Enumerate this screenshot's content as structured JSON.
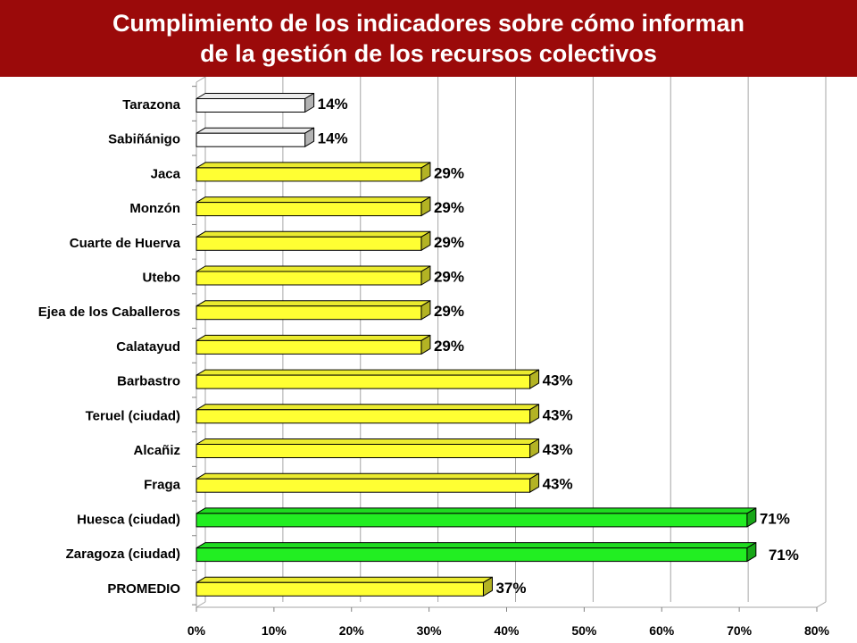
{
  "header": {
    "title_line1": "Cumplimiento de los indicadores sobre cómo informan",
    "title_line2": "de la gestión de los recursos colectivos"
  },
  "chart_data": {
    "type": "bar",
    "orientation": "horizontal",
    "title": "Cumplimiento de los indicadores sobre cómo informan de la gestión de los recursos colectivos",
    "categories": [
      "Tarazona",
      "Sabiñánigo",
      "Jaca",
      "Monzón",
      "Cuarte de Huerva",
      "Utebo",
      "Ejea de los Caballeros",
      "Calatayud",
      "Barbastro",
      "Teruel (ciudad)",
      "Alcañiz",
      "Fraga",
      "Huesca (ciudad)",
      "Zaragoza (ciudad)",
      "PROMEDIO"
    ],
    "values": [
      14,
      14,
      29,
      29,
      29,
      29,
      29,
      29,
      43,
      43,
      43,
      43,
      71,
      71,
      37
    ],
    "value_labels": [
      "14%",
      "14%",
      "29%",
      "29%",
      "29%",
      "29%",
      "29%",
      "29%",
      "43%",
      "43%",
      "43%",
      "43%",
      "71%",
      "71%",
      "37%"
    ],
    "bar_colors": [
      "#ffffff",
      "#ffffff",
      "#ffff33",
      "#ffff33",
      "#ffff33",
      "#ffff33",
      "#ffff33",
      "#ffff33",
      "#ffff33",
      "#ffff33",
      "#ffff33",
      "#ffff33",
      "#22ee22",
      "#22ee22",
      "#ffff33"
    ],
    "xlim": [
      0,
      80
    ],
    "x_ticks": [
      0,
      10,
      20,
      30,
      40,
      50,
      60,
      70,
      80
    ],
    "x_tick_labels": [
      "0%",
      "10%",
      "20%",
      "30%",
      "40%",
      "50%",
      "60%",
      "70%",
      "80%"
    ],
    "grid": true,
    "legend": "none"
  }
}
